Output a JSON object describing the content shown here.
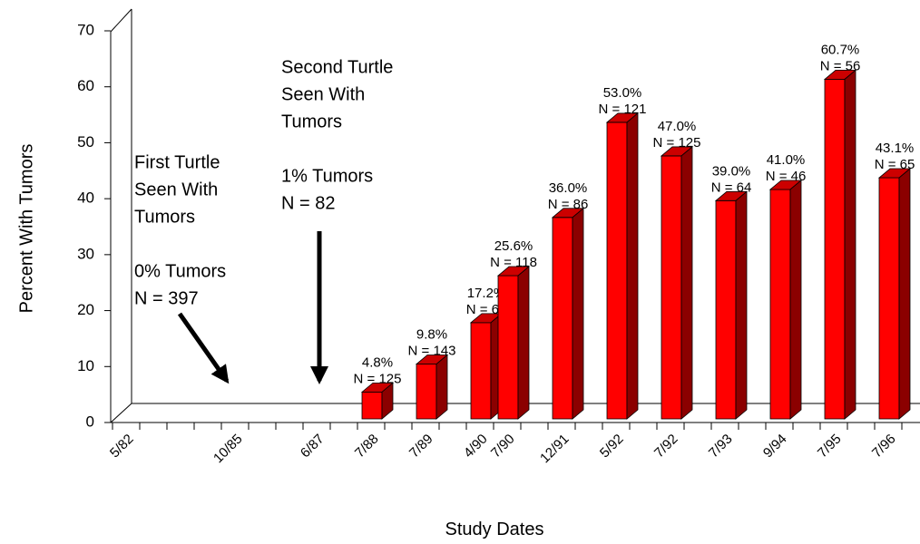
{
  "chart_data": {
    "type": "bar3d",
    "x_label": "Study Dates",
    "y_label": "Percent With Tumors",
    "categories": [
      "5/82",
      null,
      null,
      null,
      "10/85",
      null,
      null,
      "6/87",
      null,
      "7/88",
      null,
      "7/89",
      null,
      "4/90",
      "7/90",
      null,
      "12/91",
      null,
      "5/92",
      null,
      "7/92",
      null,
      "7/93",
      null,
      "9/94",
      null,
      "7/95",
      null,
      "7/96"
    ],
    "values": [
      null,
      null,
      null,
      null,
      null,
      null,
      null,
      null,
      null,
      4.8,
      null,
      9.8,
      null,
      17.2,
      25.6,
      null,
      36.0,
      null,
      53.0,
      null,
      47.0,
      null,
      39.0,
      null,
      41.0,
      null,
      60.7,
      null,
      43.1
    ],
    "value_labels": [
      null,
      null,
      null,
      null,
      null,
      null,
      null,
      null,
      null,
      "4.8%",
      null,
      "9.8%",
      null,
      "17.2%",
      "25.6%",
      null,
      "36.0%",
      null,
      "53.0%",
      null,
      "47.0%",
      null,
      "39.0%",
      null,
      "41.0%",
      null,
      "60.7%",
      null,
      "43.1%"
    ],
    "n_labels": [
      null,
      null,
      null,
      null,
      null,
      null,
      null,
      null,
      null,
      "N = 125",
      null,
      "N = 143",
      null,
      "N = 64",
      "N = 118",
      null,
      "N = 86",
      null,
      "N = 121",
      null,
      "N = 125",
      null,
      "N = 64",
      null,
      "N = 46",
      null,
      "N = 56",
      null,
      "N = 65"
    ],
    "color": "#ff0000",
    "ylim": [
      0,
      70
    ],
    "yticks": [
      0,
      10,
      20,
      30,
      40,
      50,
      60,
      70
    ],
    "annotations": [
      {
        "lines": [
          "First Turtle",
          "Seen With",
          "Tumors",
          "0% Tumors",
          "N = 397"
        ]
      },
      {
        "lines": [
          "Second Turtle",
          "Seen With",
          "Tumors",
          "1% Tumors",
          "N = 82"
        ]
      }
    ]
  }
}
